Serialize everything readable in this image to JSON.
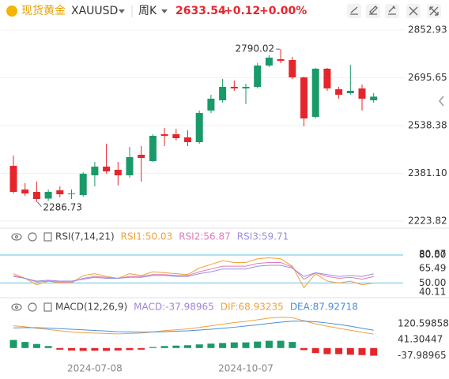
{
  "header": {
    "name": "现货黄金",
    "symbol": "XAUUSD",
    "period": "周K",
    "price": "2633.54",
    "change": "+0.12",
    "change_pct": "+0.00%"
  },
  "chart_data": [
    {
      "type": "candlestick",
      "categories": [
        null,
        null,
        null,
        null,
        null,
        null,
        null,
        "2024-07-08",
        null,
        null,
        null,
        null,
        null,
        null,
        null,
        null,
        null,
        null,
        null,
        null,
        "2024-10-07",
        null,
        null,
        null,
        null,
        null,
        null,
        null,
        null,
        null,
        null,
        null
      ],
      "open": [
        2405.7,
        2327.7,
        2319.9,
        2298.0,
        2325.1,
        2312.1,
        2309.5,
        2374.5,
        2403.1,
        2392.7,
        2374.5,
        2442.1,
        2421.3,
        2509.7,
        2509.7,
        2499.3,
        2483.7,
        2587.7,
        2621.5,
        2665.7,
        2660.5,
        2665.7,
        2735.9,
        2756.7,
        2754.1,
        2696.9,
        2566.9,
        2725.5,
        2657.9,
        2644.9,
        2660.5,
        2621.5
      ],
      "high": [
        2439.5,
        2348.5,
        2353.7,
        2327.7,
        2338.1,
        2327.7,
        2384.9,
        2418.7,
        2478.5,
        2418.7,
        2468.1,
        2470.7,
        2509.7,
        2530.5,
        2527.9,
        2522.7,
        2587.7,
        2639.7,
        2691.7,
        2686.5,
        2676.1,
        2743.7,
        2770.0,
        2790.02,
        2764.5,
        2699.5,
        2728.1,
        2728.1,
        2665.7,
        2738.5,
        2673.5,
        2644.9
      ],
      "low": [
        2314.7,
        2306.9,
        2286.73,
        2290.0,
        2301.7,
        2296.5,
        2304.3,
        2338.1,
        2379.7,
        2340.7,
        2366.7,
        2353.7,
        2418.7,
        2470.7,
        2488.9,
        2470.7,
        2478.5,
        2579.9,
        2613.7,
        2652.7,
        2608.5,
        2660.5,
        2730.7,
        2743.7,
        2691.7,
        2535.7,
        2561.7,
        2652.7,
        2626.7,
        2639.7,
        2587.7,
        2613.7
      ],
      "close": [
        2319.9,
        2314.7,
        2296.5,
        2319.9,
        2312.1,
        2314.7,
        2379.7,
        2403.1,
        2387.5,
        2374.5,
        2434.3,
        2431.7,
        2504.5,
        2504.5,
        2496.7,
        2483.7,
        2579.9,
        2626.7,
        2665.7,
        2660.5,
        2665.7,
        2735.9,
        2761.9,
        2751.5,
        2696.9,
        2561.7,
        2725.5,
        2660.5,
        2639.7,
        2652.7,
        2626.7,
        2633.54
      ],
      "up_color": "#1a9a68",
      "down_color": "#e4262c",
      "ylim": [
        2197.8,
        2904.9
      ],
      "yticks": [
        2223.82,
        {
          "value": 2381.1,
          "label": "2381.10"
        },
        2538.38,
        2695.65,
        2852.93
      ],
      "grid": true,
      "high_label": "2790.02",
      "low_label": "2286.73"
    },
    {
      "type": "line",
      "title": "RSI(7,14,21)",
      "series": [
        {
          "name": "RSI1:50.03",
          "color": "#f0a23a",
          "values": [
            60,
            55,
            48,
            52,
            50,
            50,
            58,
            60,
            57,
            55,
            60,
            58,
            62,
            61,
            60,
            59,
            66,
            70,
            74,
            72,
            72,
            76,
            77,
            76,
            68,
            45,
            60,
            52,
            50,
            52,
            48,
            50.03
          ]
        },
        {
          "name": "RSI2:56.87",
          "color": "#e07ab8",
          "values": [
            58,
            55,
            51,
            52,
            51,
            51,
            55,
            57,
            56,
            55,
            57,
            57,
            59,
            59,
            58,
            58,
            62,
            65,
            68,
            68,
            68,
            71,
            72,
            72,
            67,
            54,
            61,
            57,
            55,
            56,
            54,
            56.87
          ]
        },
        {
          "name": "RSI3:59.71",
          "color": "#9a8fe0",
          "values": [
            57,
            55,
            52,
            53,
            52,
            52,
            54,
            56,
            55,
            55,
            56,
            56,
            58,
            58,
            57,
            57,
            60,
            62,
            65,
            65,
            65,
            68,
            69,
            69,
            66,
            57,
            61,
            59,
            57,
            58,
            57,
            59.71
          ]
        }
      ],
      "ylim": [
        40.11,
        80.87
      ],
      "yticks": [
        40.11,
        {
          "value": 50,
          "label": "50.00"
        },
        65.49,
        {
          "value": 80,
          "label": "80.00"
        },
        80.87
      ],
      "level_color": "#5cc6e6"
    },
    {
      "type": "macd",
      "title": "MACD(12,26,9)",
      "series": [
        {
          "name": "MACD:-37.98965",
          "color": "#a184d8",
          "kind": "bar",
          "values": [
            40,
            30,
            20,
            10,
            -8,
            -12,
            -14,
            -13,
            -14,
            -12,
            -10,
            -8,
            5,
            10,
            12,
            14,
            18,
            22,
            25,
            28,
            28,
            32,
            36,
            36,
            30,
            -10,
            -25,
            -30,
            -30,
            -33,
            -35,
            -37.98965
          ]
        },
        {
          "name": "DIF:68.93235",
          "color": "#f0a23a",
          "values": [
            110,
            105,
            98,
            92,
            85,
            80,
            76,
            74,
            72,
            70,
            72,
            74,
            80,
            86,
            90,
            95,
            102,
            110,
            118,
            126,
            132,
            140,
            148,
            152,
            150,
            135,
            120,
            108,
            98,
            88,
            78,
            68.93235
          ]
        },
        {
          "name": "DEA:87.92718",
          "color": "#4a8fd8",
          "values": [
            100,
            101,
            101,
            99,
            96,
            93,
            90,
            87,
            84,
            81,
            80,
            79,
            80,
            81,
            83,
            85,
            89,
            93,
            98,
            103,
            109,
            115,
            122,
            128,
            133,
            133,
            130,
            124,
            117,
            108,
            98,
            87.92718
          ]
        }
      ],
      "up_color": "#1a9a68",
      "down_color": "#e4262c",
      "ylim": [
        -75,
        218
      ],
      "yticks": [
        -37.98965,
        41.30447,
        120.59858
      ]
    }
  ]
}
